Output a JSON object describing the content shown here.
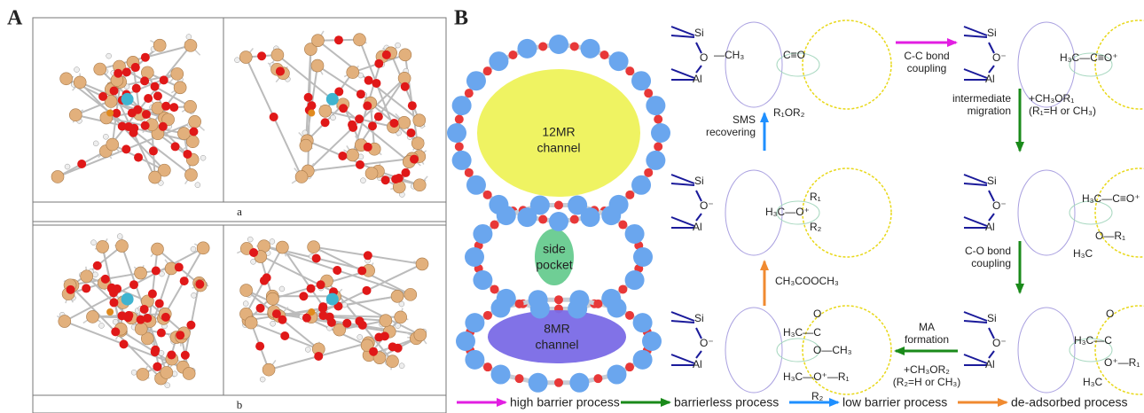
{
  "panel_a": {
    "label": "A",
    "sublabels": [
      "a",
      "b"
    ]
  },
  "panel_b": {
    "label": "B",
    "channel_12mr": [
      "12MR",
      "channel"
    ],
    "side_pocket": [
      "side",
      "pocket"
    ],
    "channel_8mr": [
      "8MR",
      "channel"
    ],
    "schemes": [
      {
        "texts": [
          "Si",
          "O",
          "Al",
          "—CH₃",
          "C≡O"
        ]
      },
      {
        "texts": [
          "Si",
          "O⁻",
          "Al",
          "H₃C—C≡O⁺"
        ]
      },
      {
        "texts": [
          "Si",
          "O⁻",
          "Al",
          "H₃C—O⁺",
          "R₁",
          "R₂"
        ]
      },
      {
        "texts": [
          "Si",
          "O⁻",
          "Al",
          "H₃C—C≡O⁺",
          "O—R₁",
          "H₃C"
        ]
      },
      {
        "texts": [
          "Si",
          "O⁻",
          "Al",
          "O",
          "H₃C—C",
          "O—CH₃",
          "H₃C—O⁺—R₁",
          "R₂"
        ]
      },
      {
        "texts": [
          "Si",
          "O⁻",
          "Al",
          "O",
          "H₃C—C",
          "O⁺—R₁",
          "H₃C"
        ]
      }
    ],
    "steps": [
      {
        "lines": [
          "C-C bond",
          "coupling"
        ]
      },
      {
        "lines": [
          "intermediate",
          "migration"
        ]
      },
      {
        "lines": [
          "+CH₃OR₁",
          "(R₁=H or CH₃)"
        ]
      },
      {
        "lines": [
          "SMS",
          "recovering"
        ]
      },
      {
        "lines": [
          "R₁OR₂"
        ]
      },
      {
        "lines": [
          "CH₃COOCH₃"
        ]
      },
      {
        "lines": [
          "C-O bond",
          "coupling"
        ]
      },
      {
        "lines": [
          "MA",
          "formation"
        ]
      },
      {
        "lines": [
          "+CH₃OR₂",
          "(R₂=H or CH₃)"
        ]
      }
    ],
    "legend": [
      {
        "text": "high barrier process",
        "color": "#e21ee2"
      },
      {
        "text": "barrierless process",
        "color": "#1a8a1a"
      },
      {
        "text": "low barrier process",
        "color": "#1e8fff"
      },
      {
        "text": "de-adsorbed process",
        "color": "#f08a30"
      }
    ]
  }
}
